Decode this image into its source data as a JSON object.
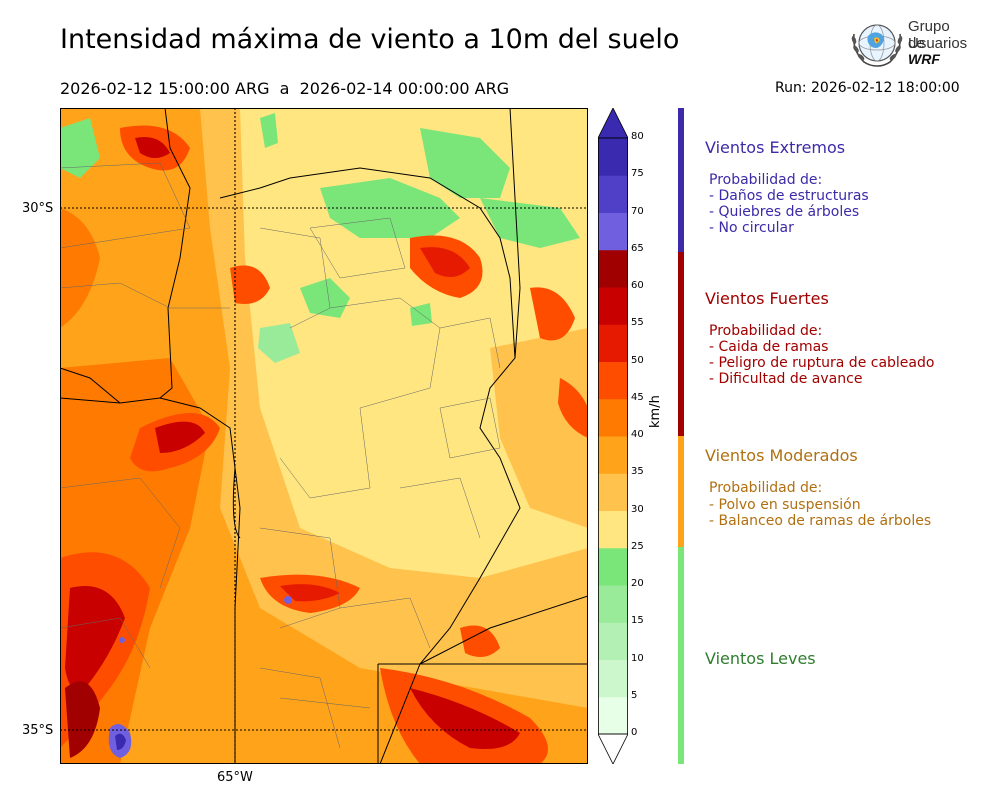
{
  "header": {
    "title": "Intensidad máxima de viento a 10m del suelo",
    "period": "2026-02-12 15:00:00 ARG  a  2026-02-14 00:00:00 ARG",
    "run": "Run: 2026-02-12 18:00:00"
  },
  "logo": {
    "line1": "Grupo de",
    "line2": "Usuarios",
    "line3": "WRF",
    "icon": "globe-laurel-icon"
  },
  "map": {
    "lat_labels": [
      "30°S",
      "35°S"
    ],
    "lon_labels": [
      "65°W"
    ]
  },
  "colorbar": {
    "unit": "km/h",
    "ticks": [
      "0",
      "5",
      "10",
      "15",
      "20",
      "25",
      "30",
      "35",
      "40",
      "45",
      "50",
      "55",
      "60",
      "65",
      "70",
      "75",
      "80"
    ],
    "colors": [
      "#e6ffe6",
      "#ccf7cc",
      "#b3f0b3",
      "#99eb99",
      "#7ae67a",
      "#ffe680",
      "#ffc24d",
      "#ffa31a",
      "#ff7a00",
      "#ff4d00",
      "#e61a00",
      "#c80000",
      "#a00000",
      "#7060e0",
      "#5040c8",
      "#3a2ab0"
    ]
  },
  "categories": [
    {
      "title": "Vientos Extremos",
      "color": "#3c2aa8",
      "lines": [
        "Probabilidad de:",
        "- Daños de estructuras",
        "- Quiebres de árboles",
        "- No circular"
      ]
    },
    {
      "title": "Vientos Fuertes",
      "color": "#a00000",
      "lines": [
        "Probabilidad de:",
        "- Caida de ramas",
        "- Peligro de ruptura de cableado",
        "- Dificultad de avance"
      ]
    },
    {
      "title": "Vientos Moderados",
      "color": "#b07010",
      "lines": [
        "Probabilidad de:",
        "- Polvo en suspensión",
        "- Balanceo de ramas de árboles"
      ]
    },
    {
      "title": "Vientos Leves",
      "color": "#2e7d2e",
      "lines": []
    }
  ]
}
